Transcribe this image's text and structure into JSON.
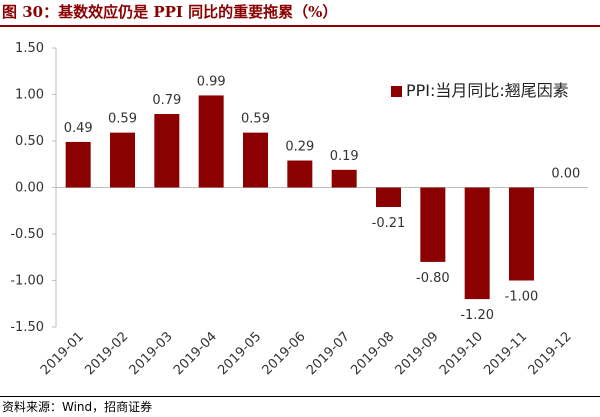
{
  "figure": {
    "title": "图 30：基数效应仍是 PPI 同比的重要拖累（%）",
    "source": "资料来源：Wind，招商证券"
  },
  "colors": {
    "bar": "#8B0000",
    "title": "#8B0000",
    "axis_text": "#333333",
    "axis_line": "#bfbfbf"
  },
  "chart_data": {
    "type": "bar",
    "categories": [
      "2019-01",
      "2019-02",
      "2019-03",
      "2019-04",
      "2019-05",
      "2019-06",
      "2019-07",
      "2019-08",
      "2019-09",
      "2019-10",
      "2019-11",
      "2019-12"
    ],
    "series": [
      {
        "name": "PPI:当月同比:翘尾因素",
        "values": [
          0.49,
          0.59,
          0.79,
          0.99,
          0.59,
          0.29,
          0.19,
          -0.21,
          -0.8,
          -1.2,
          -1.0,
          0.0
        ]
      }
    ],
    "data_labels": [
      "0.49",
      "0.59",
      "0.79",
      "0.99",
      "0.59",
      "0.29",
      "0.19",
      "-0.21",
      "-0.80",
      "-1.20",
      "-1.00",
      "0.00"
    ],
    "y_ticks": [
      1.5,
      1.0,
      0.5,
      0.0,
      -0.5,
      -1.0,
      -1.5
    ],
    "y_tick_labels": [
      "1.50",
      "1.00",
      "0.50",
      "0.00",
      "-0.50",
      "-1.00",
      "-1.50"
    ],
    "ylim": [
      -1.5,
      1.5
    ],
    "grid": false,
    "legend_position": "top-right"
  }
}
